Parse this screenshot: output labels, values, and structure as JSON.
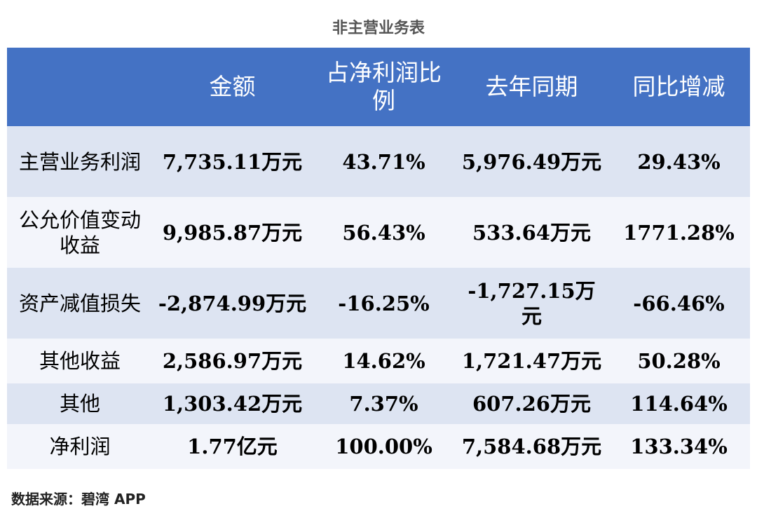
{
  "title": "非主营业务表",
  "table": {
    "headers": [
      "",
      "金额",
      "占净利润比例",
      "去年同期",
      "同比增减"
    ],
    "rows": [
      [
        "主营业务利润",
        "7,735.11万元",
        "43.71%",
        "5,976.49万元",
        "29.43%"
      ],
      [
        "公允价值变动收益",
        "9,985.87万元",
        "56.43%",
        "533.64万元",
        "1771.28%"
      ],
      [
        "资产减值损失",
        "-2,874.99万元",
        "-16.25%",
        "-1,727.15万元",
        "-66.46%"
      ],
      [
        "其他收益",
        "2,586.97万元",
        "14.62%",
        "1,721.47万元",
        "50.28%"
      ],
      [
        "其他",
        "1,303.42万元",
        "7.37%",
        "607.26万元",
        "114.64%"
      ],
      [
        "净利润",
        "1.77亿元",
        "100.00%",
        "7,584.68万元",
        "133.34%"
      ]
    ]
  },
  "watermark": "碧湾App",
  "source": "数据来源：碧湾 APP",
  "colors": {
    "header_bg": "#4472c4",
    "row_odd_bg": "#dde4f2",
    "row_even_bg": "#f3f5fb"
  }
}
